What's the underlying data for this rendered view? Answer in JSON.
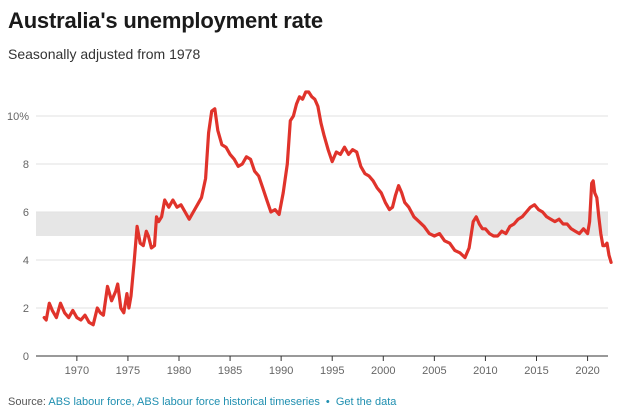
{
  "chart_data": {
    "type": "line",
    "title": "Australia's unemployment rate",
    "subtitle": "Seasonally adjusted from 1978",
    "xlabel": "",
    "ylabel": "",
    "xlim": [
      1966,
      2022
    ],
    "ylim": [
      0,
      11.5
    ],
    "x_ticks": [
      1970,
      1975,
      1980,
      1985,
      1990,
      1995,
      2000,
      2005,
      2010,
      2015,
      2020
    ],
    "y_ticks": [
      {
        "value": 0,
        "label": "0"
      },
      {
        "value": 2,
        "label": "2"
      },
      {
        "value": 4,
        "label": "4"
      },
      {
        "value": 6,
        "label": "6"
      },
      {
        "value": 8,
        "label": "8"
      },
      {
        "value": 10,
        "label": "10%"
      }
    ],
    "grid": true,
    "band": {
      "from": 5,
      "to": 6,
      "color": "#e6e6e6"
    },
    "series": [
      {
        "color": "#e0332b",
        "x": [
          1966.8,
          1967.0,
          1967.3,
          1967.6,
          1968.0,
          1968.4,
          1968.8,
          1969.2,
          1969.6,
          1970.0,
          1970.4,
          1970.8,
          1971.2,
          1971.6,
          1972.0,
          1972.3,
          1972.6,
          1973.0,
          1973.4,
          1973.8,
          1974.0,
          1974.3,
          1974.6,
          1974.9,
          1975.1,
          1975.3,
          1975.6,
          1975.9,
          1976.2,
          1976.5,
          1976.8,
          1977.0,
          1977.3,
          1977.6,
          1977.8,
          1978.0,
          1978.3,
          1978.6,
          1979.0,
          1979.4,
          1979.8,
          1980.2,
          1980.6,
          1981.0,
          1981.4,
          1981.8,
          1982.2,
          1982.6,
          1982.9,
          1983.2,
          1983.5,
          1983.8,
          1984.2,
          1984.6,
          1985.0,
          1985.4,
          1985.8,
          1986.2,
          1986.6,
          1987.0,
          1987.4,
          1987.8,
          1988.2,
          1988.6,
          1989.0,
          1989.4,
          1989.8,
          1990.2,
          1990.6,
          1990.9,
          1991.2,
          1991.5,
          1991.8,
          1992.1,
          1992.4,
          1992.7,
          1993.0,
          1993.3,
          1993.6,
          1993.9,
          1994.2,
          1994.6,
          1995.0,
          1995.4,
          1995.8,
          1996.2,
          1996.6,
          1997.0,
          1997.4,
          1997.8,
          1998.2,
          1998.6,
          1999.0,
          1999.4,
          1999.8,
          2000.2,
          2000.6,
          2000.9,
          2001.2,
          2001.5,
          2001.8,
          2002.1,
          2002.5,
          2003.0,
          2003.5,
          2004.0,
          2004.5,
          2005.0,
          2005.5,
          2006.0,
          2006.5,
          2007.0,
          2007.5,
          2008.0,
          2008.4,
          2008.8,
          2009.1,
          2009.4,
          2009.7,
          2010.0,
          2010.4,
          2010.8,
          2011.2,
          2011.6,
          2012.0,
          2012.4,
          2012.8,
          2013.2,
          2013.6,
          2014.0,
          2014.4,
          2014.8,
          2015.2,
          2015.6,
          2016.0,
          2016.4,
          2016.8,
          2017.2,
          2017.6,
          2018.0,
          2018.4,
          2018.8,
          2019.2,
          2019.6,
          2020.0,
          2020.2,
          2020.4,
          2020.55,
          2020.7,
          2020.9,
          2021.1,
          2021.3,
          2021.5,
          2021.7,
          2021.9,
          2022.1,
          2022.3
        ],
        "y": [
          1.6,
          1.5,
          2.2,
          1.9,
          1.6,
          2.2,
          1.8,
          1.6,
          1.9,
          1.6,
          1.5,
          1.7,
          1.4,
          1.3,
          2.0,
          1.8,
          1.7,
          2.9,
          2.3,
          2.7,
          3.0,
          2.0,
          1.8,
          2.6,
          2.0,
          2.5,
          3.9,
          5.4,
          4.7,
          4.6,
          5.2,
          5.0,
          4.5,
          4.6,
          5.8,
          5.6,
          5.8,
          6.5,
          6.2,
          6.5,
          6.2,
          6.3,
          6.0,
          5.7,
          6.0,
          6.3,
          6.6,
          7.4,
          9.3,
          10.2,
          10.3,
          9.4,
          8.8,
          8.7,
          8.4,
          8.2,
          7.9,
          8.0,
          8.3,
          8.2,
          7.7,
          7.5,
          7.0,
          6.5,
          6.0,
          6.1,
          5.9,
          6.8,
          8.0,
          9.8,
          10.0,
          10.5,
          10.8,
          10.7,
          11.0,
          11.0,
          10.8,
          10.7,
          10.4,
          9.7,
          9.2,
          8.6,
          8.1,
          8.5,
          8.4,
          8.7,
          8.4,
          8.6,
          8.5,
          7.9,
          7.6,
          7.5,
          7.3,
          7.0,
          6.8,
          6.4,
          6.1,
          6.2,
          6.7,
          7.1,
          6.8,
          6.4,
          6.2,
          5.8,
          5.6,
          5.4,
          5.1,
          5.0,
          5.1,
          4.8,
          4.7,
          4.4,
          4.3,
          4.1,
          4.5,
          5.6,
          5.8,
          5.5,
          5.3,
          5.3,
          5.1,
          5.0,
          5.0,
          5.2,
          5.1,
          5.4,
          5.5,
          5.7,
          5.8,
          6.0,
          6.2,
          6.3,
          6.1,
          6.0,
          5.8,
          5.7,
          5.6,
          5.7,
          5.5,
          5.5,
          5.3,
          5.2,
          5.1,
          5.3,
          5.1,
          5.6,
          7.2,
          7.3,
          6.8,
          6.6,
          5.8,
          5.1,
          4.6,
          4.6,
          4.7,
          4.2,
          3.9
        ]
      }
    ]
  },
  "source": {
    "label": "Source:",
    "text": "ABS labour force, ABS labour force historical timeseries",
    "separator": "•",
    "get_data": "Get the data"
  }
}
